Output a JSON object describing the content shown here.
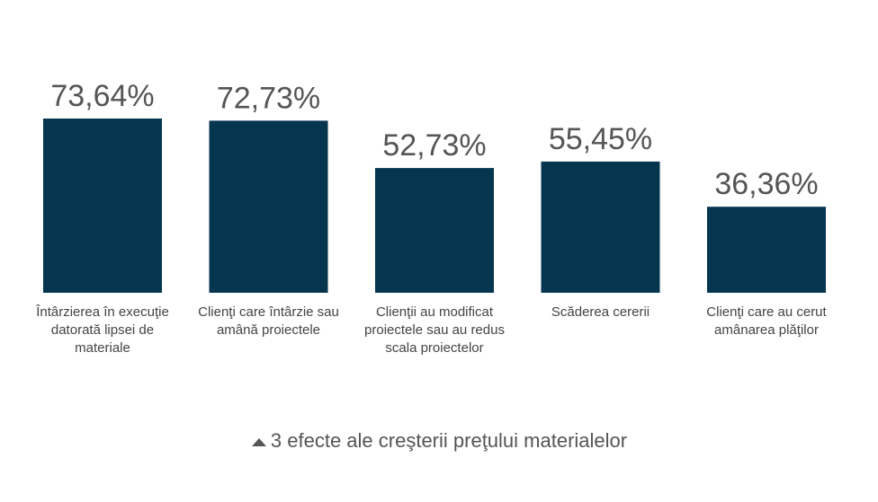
{
  "chart_data": {
    "type": "bar",
    "categories": [
      "Întârzierea în execuţie datorată lipsei de materiale",
      "Clienţi care întârzie sau amână proiectele",
      "Clienţii au modificat proiectele sau au redus scala proiectelor",
      "Scăderea cererii",
      "Clienţi care au cerut amânarea plăţilor"
    ],
    "values": [
      73.64,
      72.73,
      52.73,
      55.45,
      36.36
    ],
    "value_labels": [
      "73,64%",
      "72,73%",
      "52,73%",
      "55,45%",
      "36,36%"
    ],
    "color": "#05354f",
    "caption": "3 efecte ale creşterii preţului materialelor"
  }
}
